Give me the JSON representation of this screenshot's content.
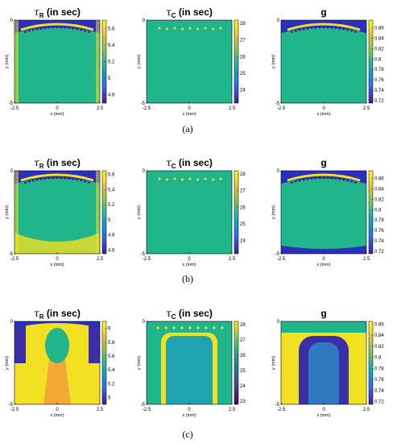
{
  "panels": [
    {
      "label": "(a)",
      "maps": [
        {
          "title_sym": "τ",
          "title_sub": "R",
          "title_rest": " (in sec)",
          "colorbar": {
            "ticks": [
              "5.6",
              "5.4",
              "5.2",
              "5",
              "4.8"
            ],
            "tick_values": [
              5.6,
              5.4,
              5.2,
              5,
              4.8
            ],
            "range": [
              4.7,
              5.7
            ]
          },
          "colors": {
            "field": "#21b58c",
            "top": "#2a2fbf",
            "edge": "#f2e023"
          }
        },
        {
          "title_sym": "τ",
          "title_sub": "C",
          "title_rest": " (in sec)",
          "colorbar": {
            "ticks": [
              "28",
              "27",
              "26",
              "25",
              "24"
            ],
            "tick_values": [
              28,
              27,
              26,
              25,
              24
            ],
            "range": [
              23.2,
              28.2
            ]
          },
          "colors": {
            "field": "#21b58c",
            "dots": "#f2e023"
          }
        },
        {
          "title_sym": "",
          "title_sub": "",
          "title_rest": "g",
          "colorbar": {
            "ticks": [
              "0.86",
              "0.84",
              "0.82",
              "0.8",
              "0.78",
              "0.76",
              "0.74",
              "0.72"
            ],
            "tick_values": [
              0.86,
              0.84,
              0.82,
              0.8,
              0.78,
              0.76,
              0.74,
              0.72
            ],
            "range": [
              0.715,
              0.875
            ]
          },
          "colors": {
            "field": "#21b58c",
            "top": "#2a2fbf",
            "edge": "#f2e023"
          }
        }
      ]
    },
    {
      "label": "(b)",
      "maps": [
        {
          "title_sym": "τ",
          "title_sub": "R",
          "title_rest": " (in sec)",
          "colorbar": {
            "ticks": [
              "5.6",
              "5.4",
              "5.2",
              "5",
              "4.8",
              "4.6"
            ],
            "tick_values": [
              5.6,
              5.4,
              5.2,
              5,
              4.8,
              4.6
            ],
            "range": [
              4.55,
              5.65
            ]
          },
          "colors": {
            "field": "#21b58c",
            "top": "#2a2fbf",
            "edge": "#f2e023"
          }
        },
        {
          "title_sym": "τ",
          "title_sub": "C",
          "title_rest": " (in sec)",
          "colorbar": {
            "ticks": [
              "28",
              "27",
              "26",
              "25",
              "24"
            ],
            "tick_values": [
              28,
              27,
              26,
              25,
              24
            ],
            "range": [
              23.2,
              28.2
            ]
          },
          "colors": {
            "field": "#21b58c",
            "dots": "#f2e023"
          }
        },
        {
          "title_sym": "",
          "title_sub": "",
          "title_rest": "g",
          "colorbar": {
            "ticks": [
              "0.86",
              "0.84",
              "0.82",
              "0.8",
              "0.78",
              "0.76",
              "0.74",
              "0.72"
            ],
            "tick_values": [
              0.86,
              0.84,
              0.82,
              0.8,
              0.78,
              0.76,
              0.74,
              0.72
            ],
            "range": [
              0.715,
              0.875
            ]
          },
          "colors": {
            "field": "#21b58c",
            "top": "#2a2fbf",
            "edge": "#f2e023"
          }
        }
      ]
    },
    {
      "label": "(c)",
      "maps": [
        {
          "title_sym": "τ",
          "title_sub": "R",
          "title_rest": " (in sec)",
          "colorbar": {
            "ticks": [
              "6",
              "5.8",
              "5.6",
              "5.4",
              "5.2",
              "5"
            ],
            "tick_values": [
              6,
              5.8,
              5.6,
              5.4,
              5.2,
              5
            ],
            "range": [
              4.9,
              6.1
            ]
          },
          "colors": {
            "field": "#f2e023",
            "side": "#3b2fa8",
            "core": "#21b58c",
            "stem": "#f59f3a"
          }
        },
        {
          "title_sym": "τ",
          "title_sub": "C",
          "title_rest": " (in sec)",
          "colorbar": {
            "ticks": [
              "28",
              "27",
              "26",
              "25",
              "24",
              "23"
            ],
            "tick_values": [
              28,
              27,
              26,
              25,
              24,
              23
            ],
            "range": [
              22.8,
              28.2
            ]
          },
          "colors": {
            "field": "#21b58c",
            "core": "#1fa3b0",
            "edge": "#f2e023"
          }
        },
        {
          "title_sym": "",
          "title_sub": "",
          "title_rest": "g",
          "colorbar": {
            "ticks": [
              "0.86",
              "0.84",
              "0.82",
              "0.8",
              "0.78",
              "0.76",
              "0.74",
              "0.72"
            ],
            "tick_values": [
              0.86,
              0.84,
              0.82,
              0.8,
              0.78,
              0.76,
              0.74,
              0.72
            ],
            "range": [
              0.715,
              0.865
            ]
          },
          "colors": {
            "field": "#f2e023",
            "core": "#3b2fa8",
            "center": "#2f86c4",
            "top": "#21b58c"
          }
        }
      ]
    }
  ],
  "chart_data": {
    "type": "heatmap",
    "x_ticks": [
      "-2.5",
      "0",
      "2.5"
    ],
    "y_ticks": [
      "0",
      "-5"
    ],
    "xlabel": "x (mm)",
    "ylabel": "y (mm)",
    "xlim": [
      -2.5,
      2.5
    ],
    "ylim": [
      -5,
      0
    ]
  }
}
